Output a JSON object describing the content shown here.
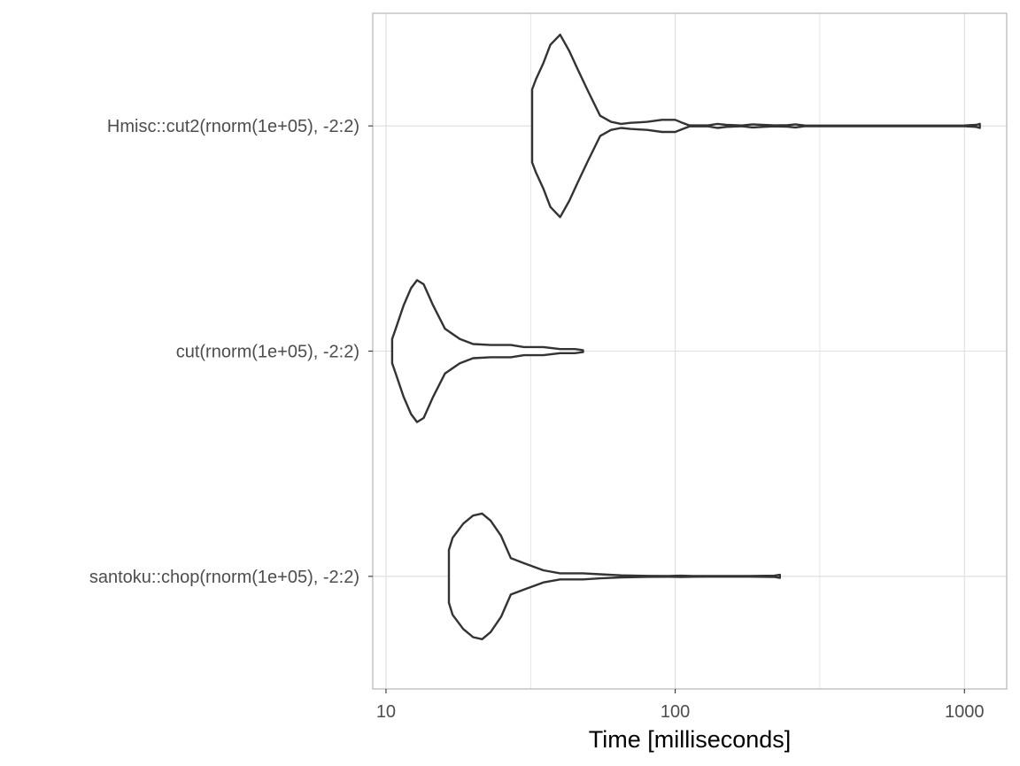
{
  "chart_data": {
    "type": "violin",
    "orientation": "horizontal",
    "title": "",
    "xlabel": "Time [milliseconds]",
    "ylabel": "",
    "x_scale": "log10",
    "xlim": [
      9,
      1400
    ],
    "x_ticks": [
      {
        "value": 10,
        "label": "10"
      },
      {
        "value": 100,
        "label": "100"
      },
      {
        "value": 1000,
        "label": "1000"
      }
    ],
    "grid": true,
    "legend": "none",
    "colors": {
      "outline": "#333333",
      "grid": "#dedede",
      "panel_border": "#b3b3b3",
      "tick_text": "#4d4d4d",
      "title_text": "#000000"
    },
    "categories": [
      "Hmisc::cut2(rnorm(1e+05), -2:2)",
      "cut(rnorm(1e+05), -2:2)",
      "santoku::chop(rnorm(1e+05), -2:2)"
    ],
    "series": [
      {
        "label": "Hmisc::cut2(rnorm(1e+05), -2:2)",
        "density": [
          [
            32,
            0.36
          ],
          [
            33,
            0.46
          ],
          [
            35,
            0.62
          ],
          [
            37,
            0.8
          ],
          [
            40,
            0.9
          ],
          [
            43,
            0.74
          ],
          [
            46,
            0.56
          ],
          [
            50,
            0.34
          ],
          [
            55,
            0.1
          ],
          [
            60,
            0.04
          ],
          [
            65,
            0.02
          ],
          [
            70,
            0.03
          ],
          [
            75,
            0.035
          ],
          [
            80,
            0.04
          ],
          [
            90,
            0.06
          ],
          [
            100,
            0.06
          ],
          [
            105,
            0.035
          ],
          [
            112,
            0.005
          ],
          [
            130,
            0.005
          ],
          [
            140,
            0.02
          ],
          [
            150,
            0.01
          ],
          [
            170,
            0.004
          ],
          [
            185,
            0.015
          ],
          [
            200,
            0.01
          ],
          [
            220,
            0.005
          ],
          [
            245,
            0.008
          ],
          [
            260,
            0.015
          ],
          [
            280,
            0.004
          ],
          [
            400,
            0.003
          ],
          [
            700,
            0.003
          ],
          [
            1000,
            0.004
          ],
          [
            1100,
            0.01
          ],
          [
            1130,
            0.02
          ]
        ]
      },
      {
        "label": "cut(rnorm(1e+05), -2:2)",
        "density": [
          [
            10.5,
            0.12
          ],
          [
            10.8,
            0.22
          ],
          [
            11.5,
            0.45
          ],
          [
            12.2,
            0.62
          ],
          [
            12.8,
            0.7
          ],
          [
            13.5,
            0.66
          ],
          [
            14.5,
            0.46
          ],
          [
            16,
            0.22
          ],
          [
            18,
            0.12
          ],
          [
            20,
            0.07
          ],
          [
            23,
            0.06
          ],
          [
            27,
            0.06
          ],
          [
            30,
            0.04
          ],
          [
            35,
            0.04
          ],
          [
            40,
            0.02
          ],
          [
            45,
            0.02
          ],
          [
            48,
            0.01
          ]
        ]
      },
      {
        "label": "santoku::chop(rnorm(1e+05), -2:2)",
        "density": [
          [
            16.5,
            0.26
          ],
          [
            17,
            0.38
          ],
          [
            18.5,
            0.52
          ],
          [
            20,
            0.6
          ],
          [
            21.5,
            0.62
          ],
          [
            23,
            0.55
          ],
          [
            25,
            0.4
          ],
          [
            27,
            0.18
          ],
          [
            30,
            0.13
          ],
          [
            35,
            0.06
          ],
          [
            40,
            0.03
          ],
          [
            48,
            0.03
          ],
          [
            55,
            0.02
          ],
          [
            65,
            0.01
          ],
          [
            80,
            0.005
          ],
          [
            95,
            0.004
          ],
          [
            105,
            0.006
          ],
          [
            115,
            0.004
          ],
          [
            130,
            0.003
          ],
          [
            180,
            0.003
          ],
          [
            220,
            0.006
          ],
          [
            230,
            0.015
          ]
        ]
      }
    ]
  }
}
